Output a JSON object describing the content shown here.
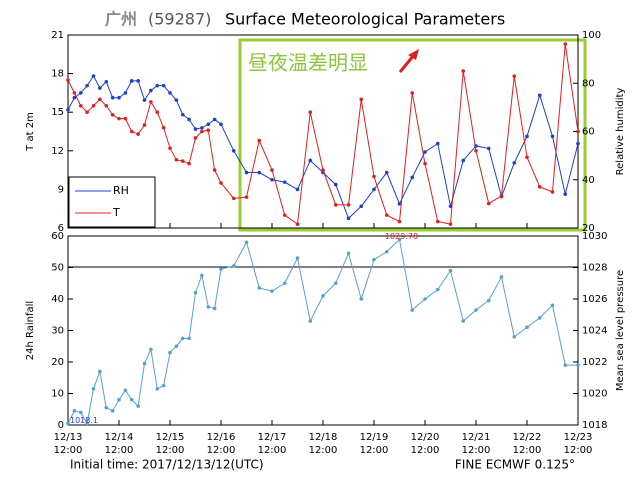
{
  "title_city": "广州",
  "title_station": "(59287)",
  "title": "Surface Meteorological Parameters",
  "footer_left": "Initial time: 2017/12/13/12(UTC)",
  "footer_right": "FINE ECMWF 0.125°",
  "chart_data": [
    {
      "type": "line",
      "ylabel": "T at 2m",
      "y2label": "Relative humidity",
      "annotation": "昼夜温差明显",
      "legend": "lower left",
      "x": [
        0,
        3,
        6,
        9,
        12,
        15,
        18,
        21,
        24,
        27,
        30,
        33,
        36,
        39,
        42,
        45,
        48,
        51,
        54,
        57,
        60,
        63,
        66,
        69,
        72,
        78,
        84,
        90,
        96,
        102,
        108,
        114,
        120,
        126,
        132,
        138,
        144,
        150,
        156,
        162,
        168,
        174,
        180,
        186,
        192,
        198,
        204,
        210,
        216,
        222,
        228,
        234,
        240
      ],
      "xlim": [
        0,
        240
      ],
      "xticks": [
        0,
        24,
        48,
        72,
        96,
        120,
        144,
        168,
        192,
        216,
        240
      ],
      "ylim": [
        6,
        21
      ],
      "yticks": [
        6,
        9,
        12,
        15,
        18,
        21
      ],
      "y2lim": [
        20,
        100
      ],
      "y2ticks": [
        20,
        40,
        60,
        80,
        100
      ],
      "series": [
        {
          "name": "RH",
          "color": "#1f3fd0",
          "axis": "y2",
          "values": [
            69,
            74,
            76,
            79,
            83,
            78,
            80.6,
            74,
            74,
            76,
            81,
            81,
            73,
            77,
            79,
            79,
            76,
            73,
            67,
            65,
            61,
            61.5,
            63,
            65,
            63,
            52,
            43,
            43,
            40,
            39,
            36,
            48,
            43,
            38,
            24,
            29,
            36,
            43,
            30,
            41,
            51.5,
            55,
            29,
            48,
            54,
            53,
            33,
            47,
            58,
            75,
            58,
            34,
            55
          ]
        },
        {
          "name": "T",
          "color": "#e02020",
          "values": [
            17.5,
            16.5,
            15.5,
            15,
            15.5,
            16,
            15.5,
            14.8,
            14.5,
            14.5,
            13.5,
            13.3,
            14,
            15.8,
            15,
            13.8,
            12.2,
            11.3,
            11.2,
            11,
            13,
            13.5,
            13.6,
            10.5,
            9.5,
            8.3,
            8.4,
            12.8,
            10.5,
            7,
            6.3,
            15,
            10.5,
            7.8,
            7.8,
            16,
            10,
            7,
            6.5,
            16.5,
            11,
            6.5,
            6.3,
            18.2,
            12,
            7.9,
            8.5,
            17.8,
            11.5,
            9.2,
            8.8,
            20.3,
            13.5
          ]
        }
      ]
    },
    {
      "type": "line",
      "ylabel": "24h Rainfall",
      "y2label": "Mean sea level pressure",
      "x": [
        0,
        3,
        6,
        9,
        12,
        15,
        18,
        21,
        24,
        27,
        30,
        33,
        36,
        39,
        42,
        45,
        48,
        51,
        54,
        57,
        60,
        63,
        66,
        69,
        72,
        78,
        84,
        90,
        96,
        102,
        108,
        114,
        120,
        126,
        132,
        138,
        144,
        150,
        156,
        162,
        168,
        174,
        180,
        186,
        192,
        198,
        204,
        210,
        216,
        222,
        228,
        234,
        240
      ],
      "xlim": [
        0,
        240
      ],
      "xticks": [
        {
          "value": 0,
          "label": "12/13 12:00"
        },
        {
          "value": 24,
          "label": "12/14 12:00"
        },
        {
          "value": 48,
          "label": "12/15 12:00"
        },
        {
          "value": 72,
          "label": "12/16 12:00"
        },
        {
          "value": 96,
          "label": "12/17 12:00"
        },
        {
          "value": 120,
          "label": "12/18 12:00"
        },
        {
          "value": 144,
          "label": "12/19 12:00"
        },
        {
          "value": 168,
          "label": "12/20 12:00"
        },
        {
          "value": 192,
          "label": "12/21 12:00"
        },
        {
          "value": 216,
          "label": "12/22 12:00"
        },
        {
          "value": 240,
          "label": "12/23 12:00"
        }
      ],
      "ylim": [
        0,
        60
      ],
      "yticks": [
        0,
        10,
        20,
        30,
        40,
        50,
        60
      ],
      "y2lim": [
        1018,
        1030
      ],
      "y2ticks": [
        1018,
        1020,
        1022,
        1024,
        1026,
        1028,
        1030
      ],
      "series": [
        {
          "color": "#5a9fd0",
          "axis": "y2",
          "values": [
            1018.1,
            1018.9,
            1018.8,
            1018.1,
            1020.3,
            1021.4,
            1019.1,
            1018.9,
            1019.6,
            1020.2,
            1019.6,
            1019.2,
            1021.9,
            1022.8,
            1020.3,
            1020.5,
            1022.6,
            1023,
            1023.5,
            1023.5,
            1026.4,
            1027.5,
            1025.5,
            1025.4,
            1027.9,
            1028.1,
            1029.6,
            1026.7,
            1026.5,
            1027,
            1028.6,
            1024.6,
            1026.2,
            1027,
            1028.9,
            1026,
            1028.5,
            1029,
            1029.78,
            1025.3,
            1026,
            1026.6,
            1027.8,
            1024.6,
            1025.3,
            1025.9,
            1027.4,
            1023.6,
            1024.2,
            1024.8,
            1025.6,
            1021.8,
            1021.8
          ]
        }
      ],
      "annotations": [
        {
          "text": "1029.78",
          "x": 156,
          "y": 1029.78,
          "color": "#e02020"
        },
        {
          "text": "1018.1",
          "x": 0,
          "y": 1018.1,
          "color": "#1f3fd0"
        }
      ]
    }
  ]
}
